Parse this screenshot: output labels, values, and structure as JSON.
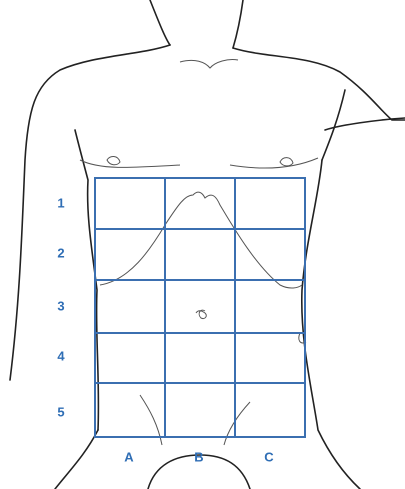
{
  "row_labels": [
    "1",
    "2",
    "3",
    "4",
    "5"
  ],
  "column_labels": [
    "A",
    "B",
    "C"
  ]
}
